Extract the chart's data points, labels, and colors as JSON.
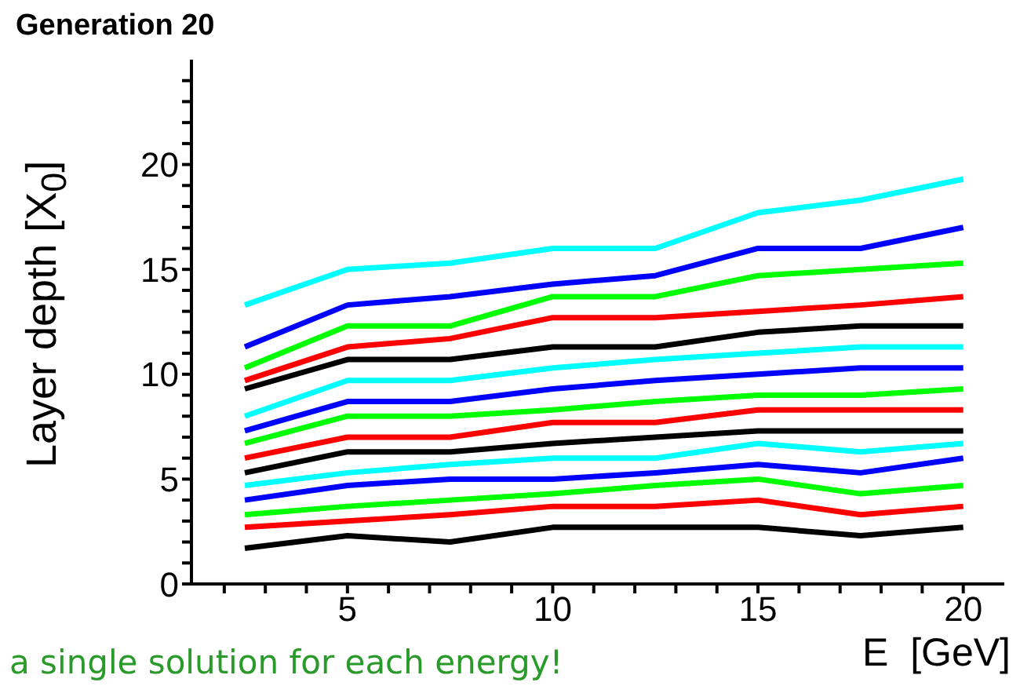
{
  "chart_data": {
    "type": "line",
    "title": "Generation 20",
    "xlabel": "E  [GeV]",
    "ylabel": "Layer depth [X$_{0}$]",
    "annotations": [
      "a single solution for each energy!"
    ],
    "x": [
      2.5,
      5,
      7.5,
      10,
      12.5,
      15,
      17.5,
      20
    ],
    "xlim": [
      1.2,
      21
    ],
    "xticks": [
      {
        "value": 2,
        "label": null
      },
      {
        "value": 3,
        "label": null
      },
      {
        "value": 4,
        "label": null
      },
      5,
      {
        "value": 6,
        "label": null
      },
      {
        "value": 7,
        "label": null
      },
      {
        "value": 8,
        "label": null
      },
      {
        "value": 9,
        "label": null
      },
      10,
      {
        "value": 11,
        "label": null
      },
      {
        "value": 12,
        "label": null
      },
      {
        "value": 13,
        "label": null
      },
      {
        "value": 14,
        "label": null
      },
      15,
      {
        "value": 16,
        "label": null
      },
      {
        "value": 17,
        "label": null
      },
      {
        "value": 18,
        "label": null
      },
      {
        "value": 19,
        "label": null
      },
      20
    ],
    "ylim": [
      0,
      25
    ],
    "yticks": [
      0,
      {
        "value": 1,
        "label": null
      },
      {
        "value": 2,
        "label": null
      },
      {
        "value": 3,
        "label": null
      },
      {
        "value": 4,
        "label": null
      },
      5,
      {
        "value": 6,
        "label": null
      },
      {
        "value": 7,
        "label": null
      },
      {
        "value": 8,
        "label": null
      },
      {
        "value": 9,
        "label": null
      },
      10,
      {
        "value": 11,
        "label": null
      },
      {
        "value": 12,
        "label": null
      },
      {
        "value": 13,
        "label": null
      },
      {
        "value": 14,
        "label": null
      },
      15,
      {
        "value": 16,
        "label": null
      },
      {
        "value": 17,
        "label": null
      },
      {
        "value": 18,
        "label": null
      },
      {
        "value": 19,
        "label": null
      },
      20,
      {
        "value": 21,
        "label": null
      },
      {
        "value": 22,
        "label": null
      },
      {
        "value": 23,
        "label": null
      },
      {
        "value": 24,
        "label": null
      }
    ],
    "grid": false,
    "legend": false,
    "marker": "none",
    "line_style": "solid",
    "series": [
      {
        "color": "#000000",
        "values": [
          1.7,
          2.3,
          2.0,
          2.7,
          2.7,
          2.7,
          2.3,
          2.7
        ]
      },
      {
        "color": "#ff0000",
        "values": [
          2.7,
          3.0,
          3.3,
          3.7,
          3.7,
          4.0,
          3.3,
          3.7
        ]
      },
      {
        "color": "#00ff00",
        "values": [
          3.3,
          3.7,
          4.0,
          4.3,
          4.7,
          5.0,
          4.3,
          4.7
        ]
      },
      {
        "color": "#0000ff",
        "values": [
          4.0,
          4.7,
          5.0,
          5.0,
          5.3,
          5.7,
          5.3,
          6.0
        ]
      },
      {
        "color": "#00ffff",
        "values": [
          4.7,
          5.3,
          5.7,
          6.0,
          6.0,
          6.7,
          6.3,
          6.7
        ]
      },
      {
        "color": "#000000",
        "values": [
          5.3,
          6.3,
          6.3,
          6.7,
          7.0,
          7.3,
          7.3,
          7.3
        ]
      },
      {
        "color": "#ff0000",
        "values": [
          6.0,
          7.0,
          7.0,
          7.7,
          7.7,
          8.3,
          8.3,
          8.3
        ]
      },
      {
        "color": "#00ff00",
        "values": [
          6.7,
          8.0,
          8.0,
          8.3,
          8.7,
          9.0,
          9.0,
          9.3
        ]
      },
      {
        "color": "#0000ff",
        "values": [
          7.3,
          8.7,
          8.7,
          9.3,
          9.7,
          10.0,
          10.3,
          10.3
        ]
      },
      {
        "color": "#00ffff",
        "values": [
          8.0,
          9.7,
          9.7,
          10.3,
          10.7,
          11.0,
          11.3,
          11.3
        ]
      },
      {
        "color": "#000000",
        "values": [
          9.3,
          10.7,
          10.7,
          11.3,
          11.3,
          12.0,
          12.3,
          12.3
        ]
      },
      {
        "color": "#ff0000",
        "values": [
          9.7,
          11.3,
          11.7,
          12.7,
          12.7,
          13.0,
          13.3,
          13.7
        ]
      },
      {
        "color": "#00ff00",
        "values": [
          10.3,
          12.3,
          12.3,
          13.7,
          13.7,
          14.7,
          15.0,
          15.3
        ]
      },
      {
        "color": "#0000ff",
        "values": [
          11.3,
          13.3,
          13.7,
          14.3,
          14.7,
          16.0,
          16.0,
          17.0
        ]
      },
      {
        "color": "#00ffff",
        "values": [
          13.3,
          15.0,
          15.3,
          16.0,
          16.0,
          17.7,
          18.3,
          19.3
        ]
      }
    ]
  }
}
